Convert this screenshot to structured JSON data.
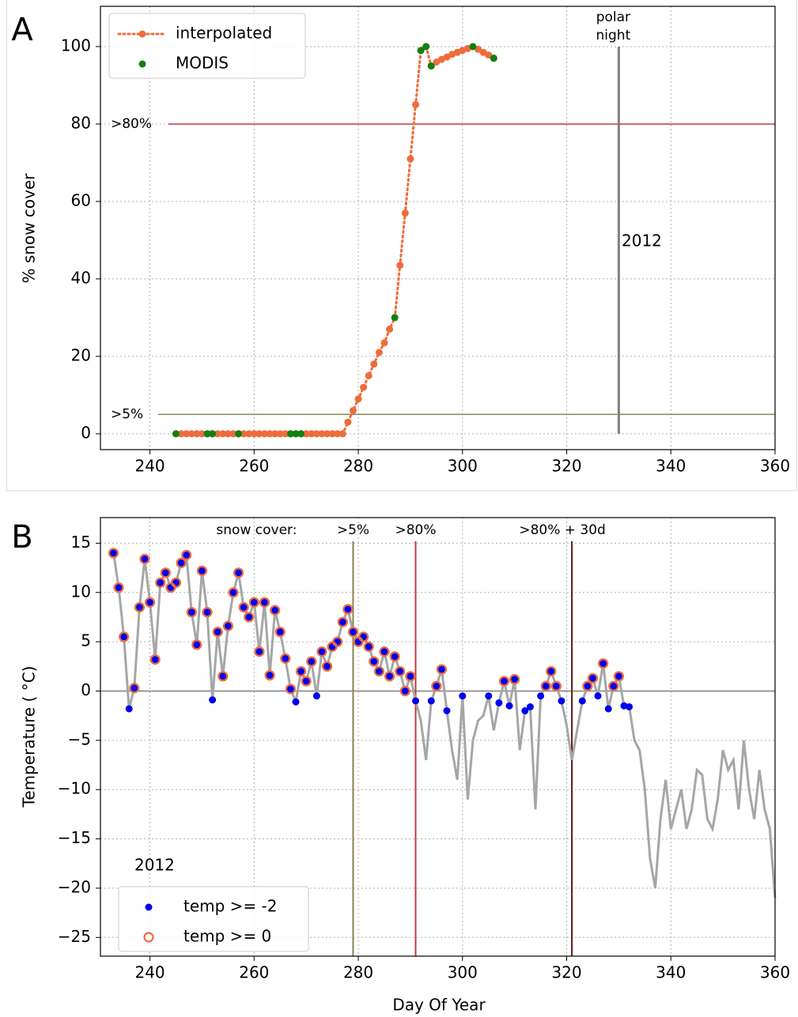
{
  "chart_data": [
    {
      "type": "line",
      "panel_label": "A",
      "y_label": "% snow cover",
      "xlim": [
        230.5,
        360
      ],
      "xticks": [
        240,
        260,
        280,
        300,
        320,
        340,
        360
      ],
      "ylim": [
        -4.1,
        110.4
      ],
      "yticks": [
        0,
        20,
        40,
        60,
        80,
        100
      ],
      "grid": true,
      "legend": "upper left",
      "series": [
        {
          "name": "interpolated",
          "color": "#ee6c3b",
          "style": "dotted",
          "x": [
            245,
            246,
            247,
            248,
            249,
            250,
            251,
            252,
            253,
            254,
            255,
            256,
            257,
            258,
            259,
            260,
            261,
            262,
            263,
            264,
            265,
            266,
            267,
            268,
            269,
            270,
            271,
            272,
            273,
            274,
            275,
            276,
            277,
            278,
            279,
            280,
            281,
            282,
            283,
            284,
            285,
            286,
            287,
            288,
            289,
            290,
            291,
            292,
            293,
            294,
            295,
            296,
            297,
            298,
            299,
            300,
            301,
            302,
            303,
            304,
            305,
            306
          ],
          "values": [
            0,
            0,
            0,
            0,
            0,
            0,
            0,
            0,
            0,
            0,
            0,
            0,
            0,
            0,
            0,
            0,
            0,
            0,
            0,
            0,
            0,
            0,
            0,
            0,
            0,
            0,
            0,
            0,
            0,
            0,
            0,
            0,
            0,
            3,
            6,
            9,
            12,
            15,
            18,
            21,
            23.5,
            27,
            30,
            43.5,
            57,
            71,
            85,
            99,
            100,
            95,
            96,
            96.7,
            97.3,
            98,
            98.5,
            99,
            99.5,
            100,
            99.3,
            98.5,
            97.8,
            97
          ]
        },
        {
          "name": "MODIS",
          "color": "#118011",
          "style": "markers",
          "x": [
            245,
            251,
            252,
            257,
            267,
            268,
            269,
            287,
            292,
            293,
            294,
            302,
            306
          ],
          "values": [
            0,
            0,
            0,
            0,
            0,
            0,
            0,
            30,
            99,
            100,
            95,
            100,
            97
          ]
        }
      ],
      "hlines": [
        {
          "value": 80,
          "label": ">80%",
          "color": "#c0393b"
        },
        {
          "value": 5,
          "label": ">5%",
          "color": "#8a8255"
        }
      ],
      "vlines": [
        {
          "value": 330,
          "ymin": 0,
          "ymax": 100,
          "color": "#808080",
          "label": [
            "polar",
            "night"
          ]
        }
      ],
      "year_label": "2012"
    },
    {
      "type": "scatter",
      "panel_label": "B",
      "y_label": "Temperature ( °C)",
      "x_label": "Day Of Year",
      "xlim": [
        230.5,
        360
      ],
      "xticks": [
        240,
        260,
        280,
        300,
        320,
        340,
        360
      ],
      "ylim": [
        -26.9,
        17.6
      ],
      "yticks": [
        15,
        10,
        5,
        0,
        {
          "value": -5,
          "label": "−5"
        },
        {
          "value": -10,
          "label": "−10"
        },
        {
          "value": -15,
          "label": "−15"
        },
        {
          "value": -20,
          "label": "−20"
        },
        {
          "value": -25,
          "label": "−25"
        }
      ],
      "grid": true,
      "legend": "lower left",
      "line": {
        "color": "#a6a6a6",
        "x": [
          233,
          234,
          235,
          236,
          237,
          238,
          239,
          240,
          241,
          242,
          243,
          244,
          245,
          246,
          247,
          248,
          249,
          250,
          251,
          252,
          253,
          254,
          255,
          256,
          257,
          258,
          259,
          260,
          261,
          262,
          263,
          264,
          265,
          266,
          267,
          268,
          269,
          270,
          271,
          272,
          273,
          274,
          275,
          276,
          277,
          278,
          279,
          280,
          281,
          282,
          283,
          284,
          285,
          286,
          287,
          288,
          289,
          290,
          291,
          292,
          293,
          294,
          295,
          296,
          297,
          298,
          299,
          300,
          301,
          302,
          303,
          304,
          305,
          306,
          307,
          308,
          309,
          310,
          311,
          312,
          313,
          314,
          315,
          316,
          317,
          318,
          319,
          320,
          321,
          322,
          323,
          324,
          325,
          326,
          327,
          328,
          329,
          330,
          331,
          332,
          333,
          334,
          335,
          336,
          337,
          338,
          339,
          340,
          341,
          342,
          343,
          344,
          345,
          346,
          347,
          348,
          349,
          350,
          351,
          352,
          353,
          354,
          355,
          356,
          357,
          358,
          359,
          360
        ],
        "values": [
          14,
          10.5,
          5.5,
          -1.8,
          0.3,
          8.5,
          13.4,
          9,
          3.2,
          11,
          12,
          10.5,
          11,
          13,
          13.8,
          8,
          4.7,
          12.2,
          8,
          -0.9,
          6,
          1.5,
          6.6,
          10,
          12,
          8.5,
          7.5,
          9,
          4,
          9,
          1.6,
          8.2,
          6,
          3.3,
          0.2,
          -1.1,
          2,
          1,
          3,
          -0.5,
          4,
          2.5,
          4.5,
          5,
          7,
          8.3,
          6,
          5,
          5.5,
          4.5,
          3,
          2,
          4,
          1.5,
          3.5,
          2,
          0,
          1.5,
          -1,
          -3,
          -7,
          -1,
          0.5,
          2.2,
          -2,
          -6,
          -9,
          -0.5,
          -11,
          -5,
          -3,
          -2.5,
          -0.5,
          -4,
          -1.2,
          1,
          -1.5,
          1.2,
          -6,
          -2,
          -1.6,
          -12,
          -0.5,
          0.5,
          2,
          0.5,
          -1,
          -3.5,
          -7,
          -4,
          -1,
          0.5,
          1.3,
          -0.5,
          2.8,
          -1.8,
          0.5,
          1.5,
          -1.5,
          -1.6,
          -5,
          -6,
          -10,
          -17,
          -20,
          -13,
          -9,
          -14,
          -12,
          -10,
          -14,
          -12,
          -8,
          -8.5,
          -13,
          -14,
          -11,
          -6,
          -8,
          -7,
          -12,
          -5,
          -10,
          -13,
          -8,
          -12,
          -14,
          -21
        ]
      },
      "series": [
        {
          "name": "temp >= -2",
          "color": "#0000ee",
          "marker": "filled",
          "x": [
            233,
            234,
            235,
            236,
            237,
            238,
            239,
            240,
            241,
            242,
            243,
            244,
            245,
            246,
            247,
            248,
            249,
            250,
            251,
            252,
            253,
            254,
            255,
            256,
            257,
            258,
            259,
            260,
            261,
            262,
            263,
            264,
            265,
            266,
            267,
            268,
            269,
            270,
            271,
            272,
            273,
            274,
            275,
            276,
            277,
            278,
            279,
            280,
            281,
            282,
            283,
            284,
            285,
            286,
            287,
            288,
            289,
            290,
            291,
            294,
            295,
            296,
            297,
            300,
            305,
            307,
            308,
            309,
            310,
            312,
            313,
            315,
            316,
            317,
            318,
            319,
            323,
            324,
            325,
            326,
            327,
            328,
            329,
            330,
            331,
            332
          ],
          "values": [
            14,
            10.5,
            5.5,
            -1.8,
            0.3,
            8.5,
            13.4,
            9,
            3.2,
            11,
            12,
            10.5,
            11,
            13,
            13.8,
            8,
            4.7,
            12.2,
            8,
            -0.9,
            6,
            1.5,
            6.6,
            10,
            12,
            8.5,
            7.5,
            9,
            4,
            9,
            1.6,
            8.2,
            6,
            3.3,
            0.2,
            -1.1,
            2,
            1,
            3,
            -0.5,
            4,
            2.5,
            4.5,
            5,
            7,
            8.3,
            6,
            5,
            5.5,
            4.5,
            3,
            2,
            4,
            1.5,
            3.5,
            2,
            0,
            1.5,
            -1,
            -1,
            0.5,
            2.2,
            -2,
            -0.5,
            -0.5,
            -1.2,
            1,
            -1.5,
            1.2,
            -2,
            -1.6,
            -0.5,
            0.5,
            2,
            0.5,
            -1,
            -1,
            0.5,
            1.3,
            -0.5,
            2.8,
            -1.8,
            0.5,
            1.5,
            -1.5,
            -1.6
          ]
        },
        {
          "name": "temp >= 0",
          "color": "#ee6c3b",
          "marker": "open",
          "x": [
            233,
            234,
            235,
            237,
            238,
            239,
            240,
            241,
            242,
            243,
            244,
            245,
            246,
            247,
            248,
            249,
            250,
            251,
            253,
            254,
            255,
            256,
            257,
            258,
            259,
            260,
            261,
            262,
            263,
            264,
            265,
            266,
            267,
            269,
            270,
            271,
            273,
            274,
            275,
            276,
            277,
            278,
            279,
            280,
            281,
            282,
            283,
            284,
            285,
            286,
            287,
            288,
            289,
            290,
            295,
            296,
            308,
            310,
            316,
            317,
            318,
            324,
            325,
            327,
            329,
            330
          ],
          "values": [
            14,
            10.5,
            5.5,
            0.3,
            8.5,
            13.4,
            9,
            3.2,
            11,
            12,
            10.5,
            11,
            13,
            13.8,
            8,
            4.7,
            12.2,
            8,
            6,
            1.5,
            6.6,
            10,
            12,
            8.5,
            7.5,
            9,
            4,
            9,
            1.6,
            8.2,
            6,
            3.3,
            0.2,
            2,
            1,
            3,
            4,
            2.5,
            4.5,
            5,
            7,
            8.3,
            6,
            5,
            5.5,
            4.5,
            3,
            2,
            4,
            1.5,
            3.5,
            2,
            0,
            1.5,
            0.5,
            2.2,
            1,
            1.2,
            0.5,
            2,
            0.5,
            0.5,
            1.3,
            2.8,
            0.5,
            1.5
          ]
        }
      ],
      "hlines": [
        {
          "value": 0,
          "color": "#808080"
        }
      ],
      "vlines_title": "snow cover:",
      "vlines": [
        {
          "value": 279,
          "label": ">5%",
          "color": "#8a8255"
        },
        {
          "value": 291,
          "label": ">80%",
          "color": "#c0393b"
        },
        {
          "value": 321,
          "label": ">80% + 30d",
          "color": "#5c1a1a"
        }
      ],
      "year_label": "2012"
    }
  ]
}
